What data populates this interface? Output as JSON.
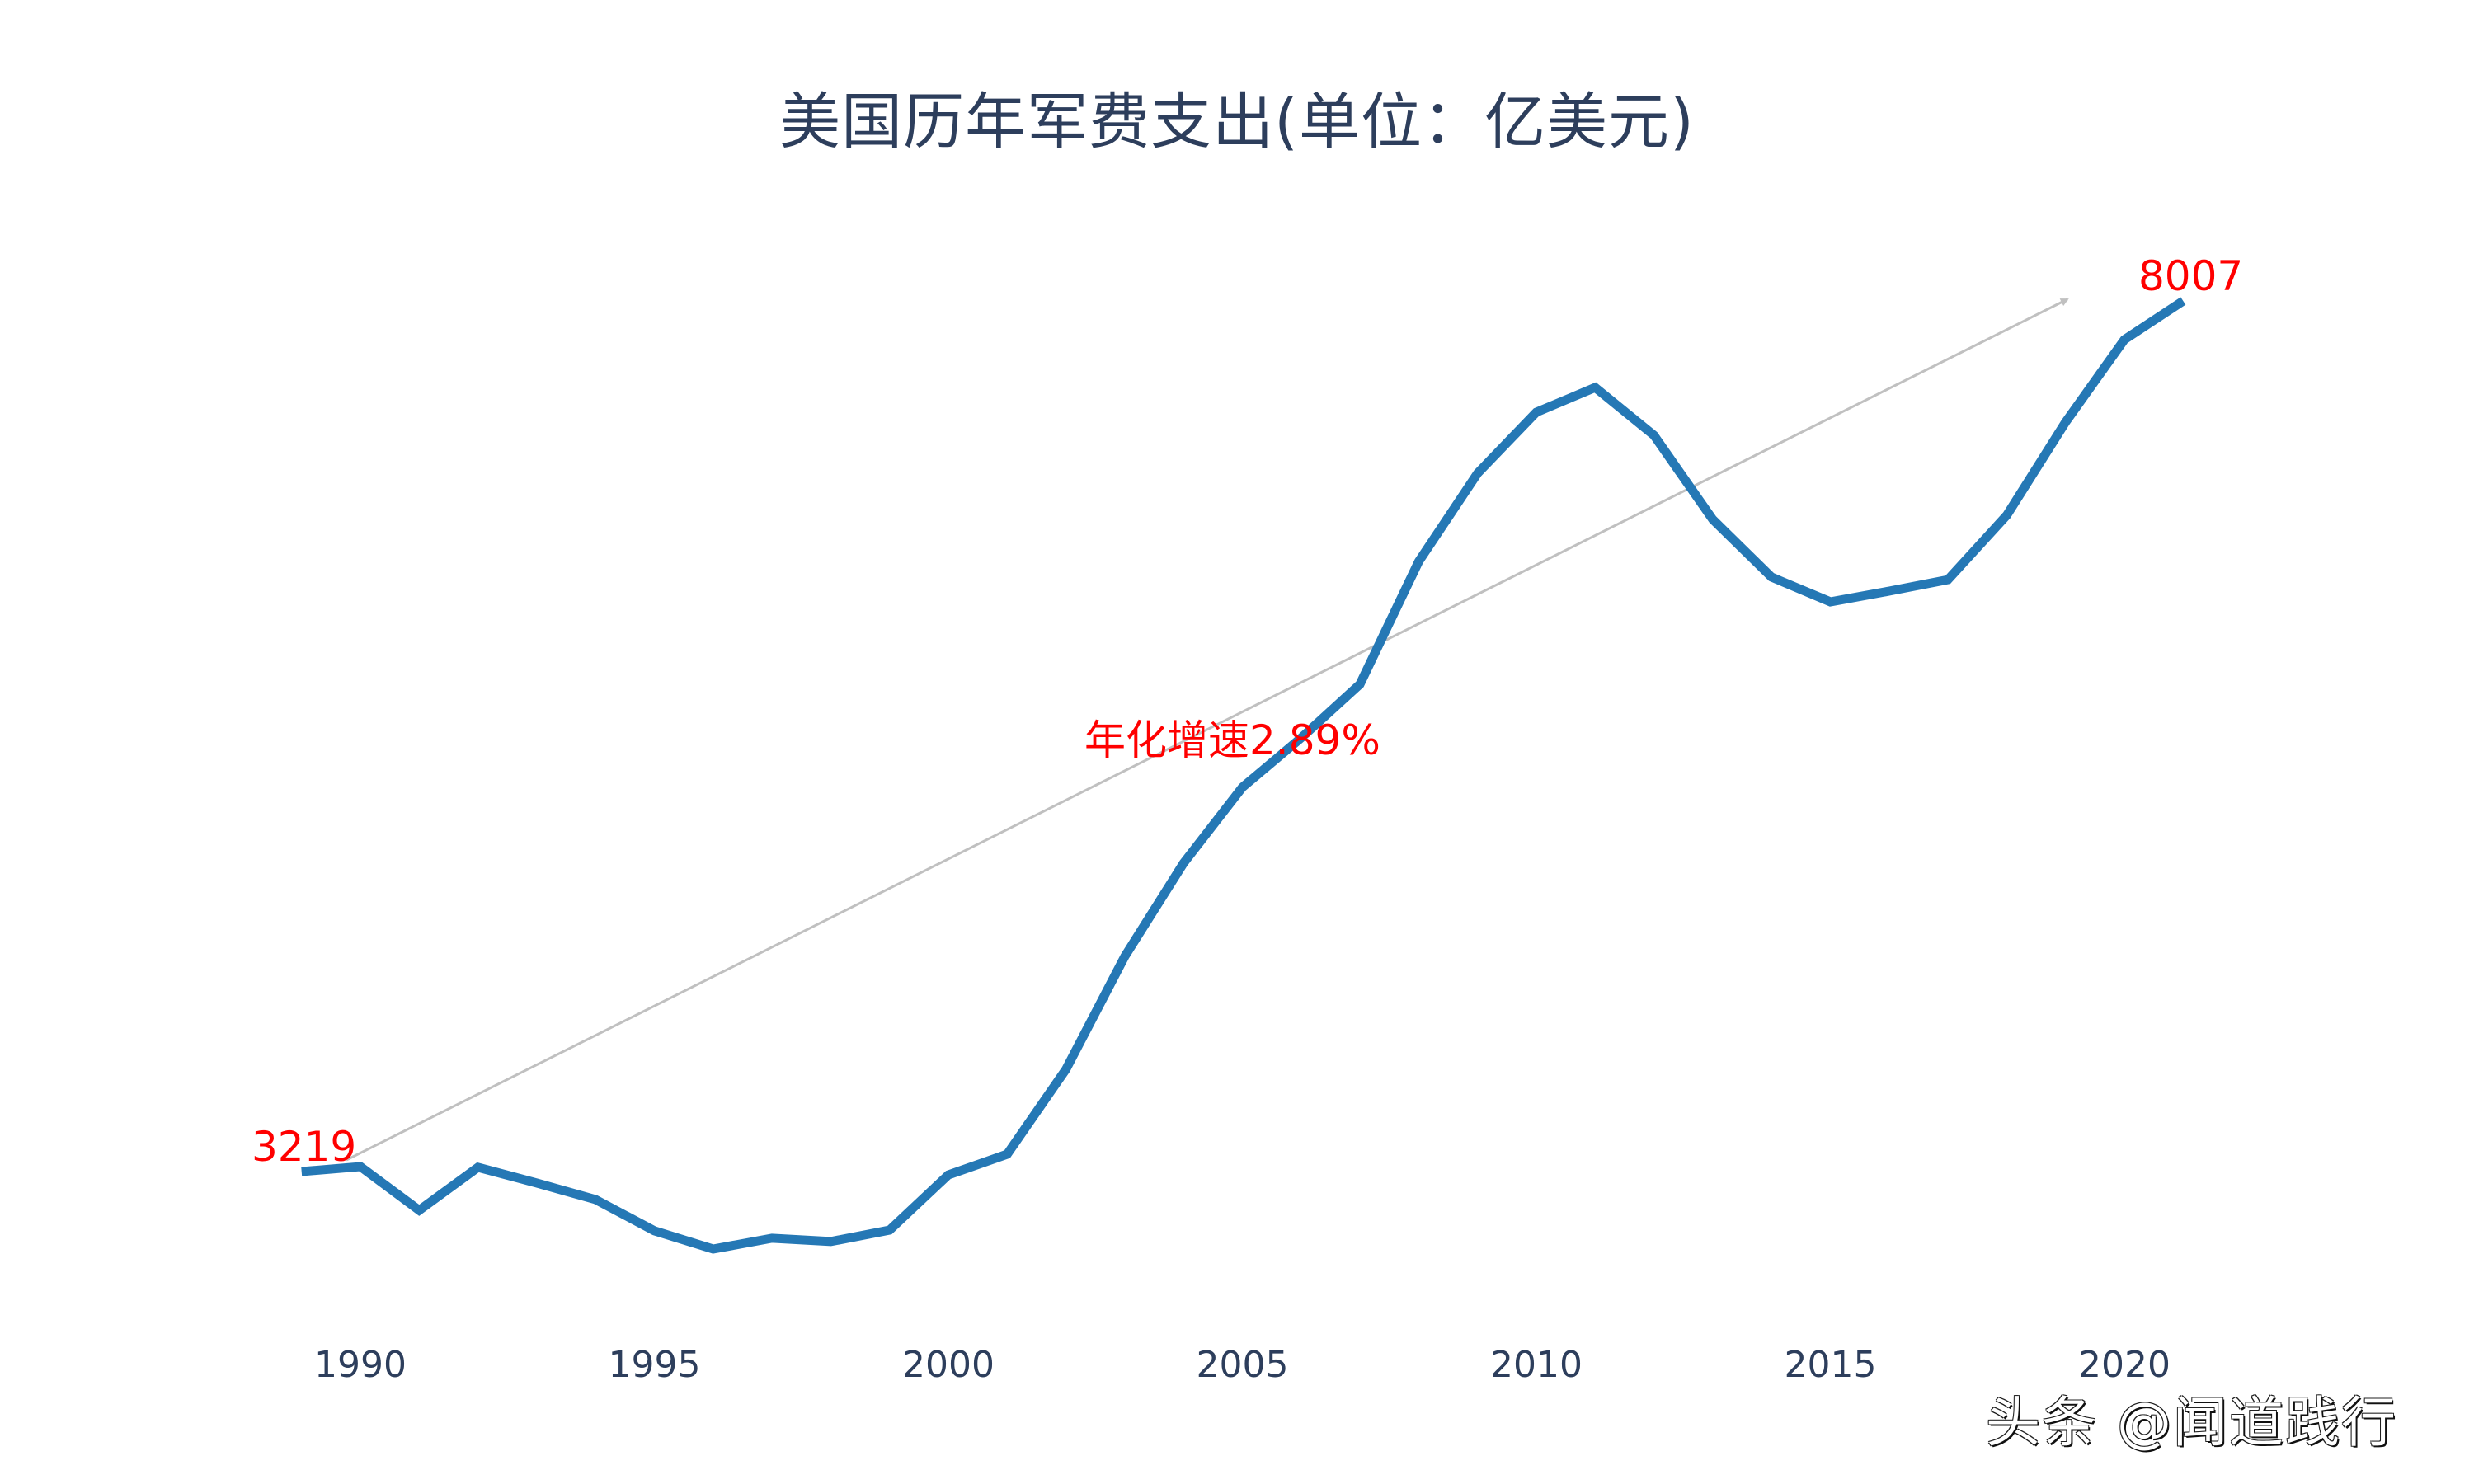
{
  "title": "美国历年军费支出(单位：亿美元)",
  "watermark": "头条 @闻道践行",
  "colors": {
    "title": "#2d3e5c",
    "line": "#2578b5",
    "annotation": "#ff0000",
    "trend_arrow": "#c0c0c0",
    "axis_labels": "#2d3e5c"
  },
  "annotations": {
    "start_value": "3219",
    "end_value": "8007",
    "growth_rate": "年化增速2.89%"
  },
  "chart_data": {
    "type": "line",
    "title": "美国历年军费支出(单位：亿美元)",
    "xlabel": "",
    "ylabel": "",
    "unit": "亿美元",
    "grid": false,
    "legend": null,
    "y_axis_visible": false,
    "x_tick_labels": [
      "1990",
      "1995",
      "2000",
      "2005",
      "2010",
      "2015",
      "2020"
    ],
    "x": [
      1989,
      1990,
      1991,
      1992,
      1993,
      1994,
      1995,
      1996,
      1997,
      1998,
      1999,
      2000,
      2001,
      2002,
      2003,
      2004,
      2005,
      2006,
      2007,
      2008,
      2009,
      2010,
      2011,
      2012,
      2013,
      2014,
      2015,
      2016,
      2017,
      2018,
      2019,
      2020,
      2021
    ],
    "series": [
      {
        "name": "美国军费支出",
        "values": [
          3219,
          3246,
          3006,
          3242,
          3156,
          3065,
          2893,
          2793,
          2852,
          2834,
          2897,
          3201,
          3314,
          3781,
          4402,
          4915,
          5332,
          5604,
          5899,
          6574,
          7059,
          7395,
          7531,
          7268,
          6805,
          6488,
          6352,
          6411,
          6474,
          6828,
          7340,
          7794,
          8007
        ]
      }
    ],
    "data_labels": [
      {
        "x": 1989,
        "text": "3219"
      },
      {
        "x": 2021,
        "text": "8007"
      }
    ],
    "trend_arrow": {
      "from_year": 1990,
      "to_year": 2020,
      "label": "年化增速2.89%",
      "annualized_growth_pct": 2.89
    }
  }
}
